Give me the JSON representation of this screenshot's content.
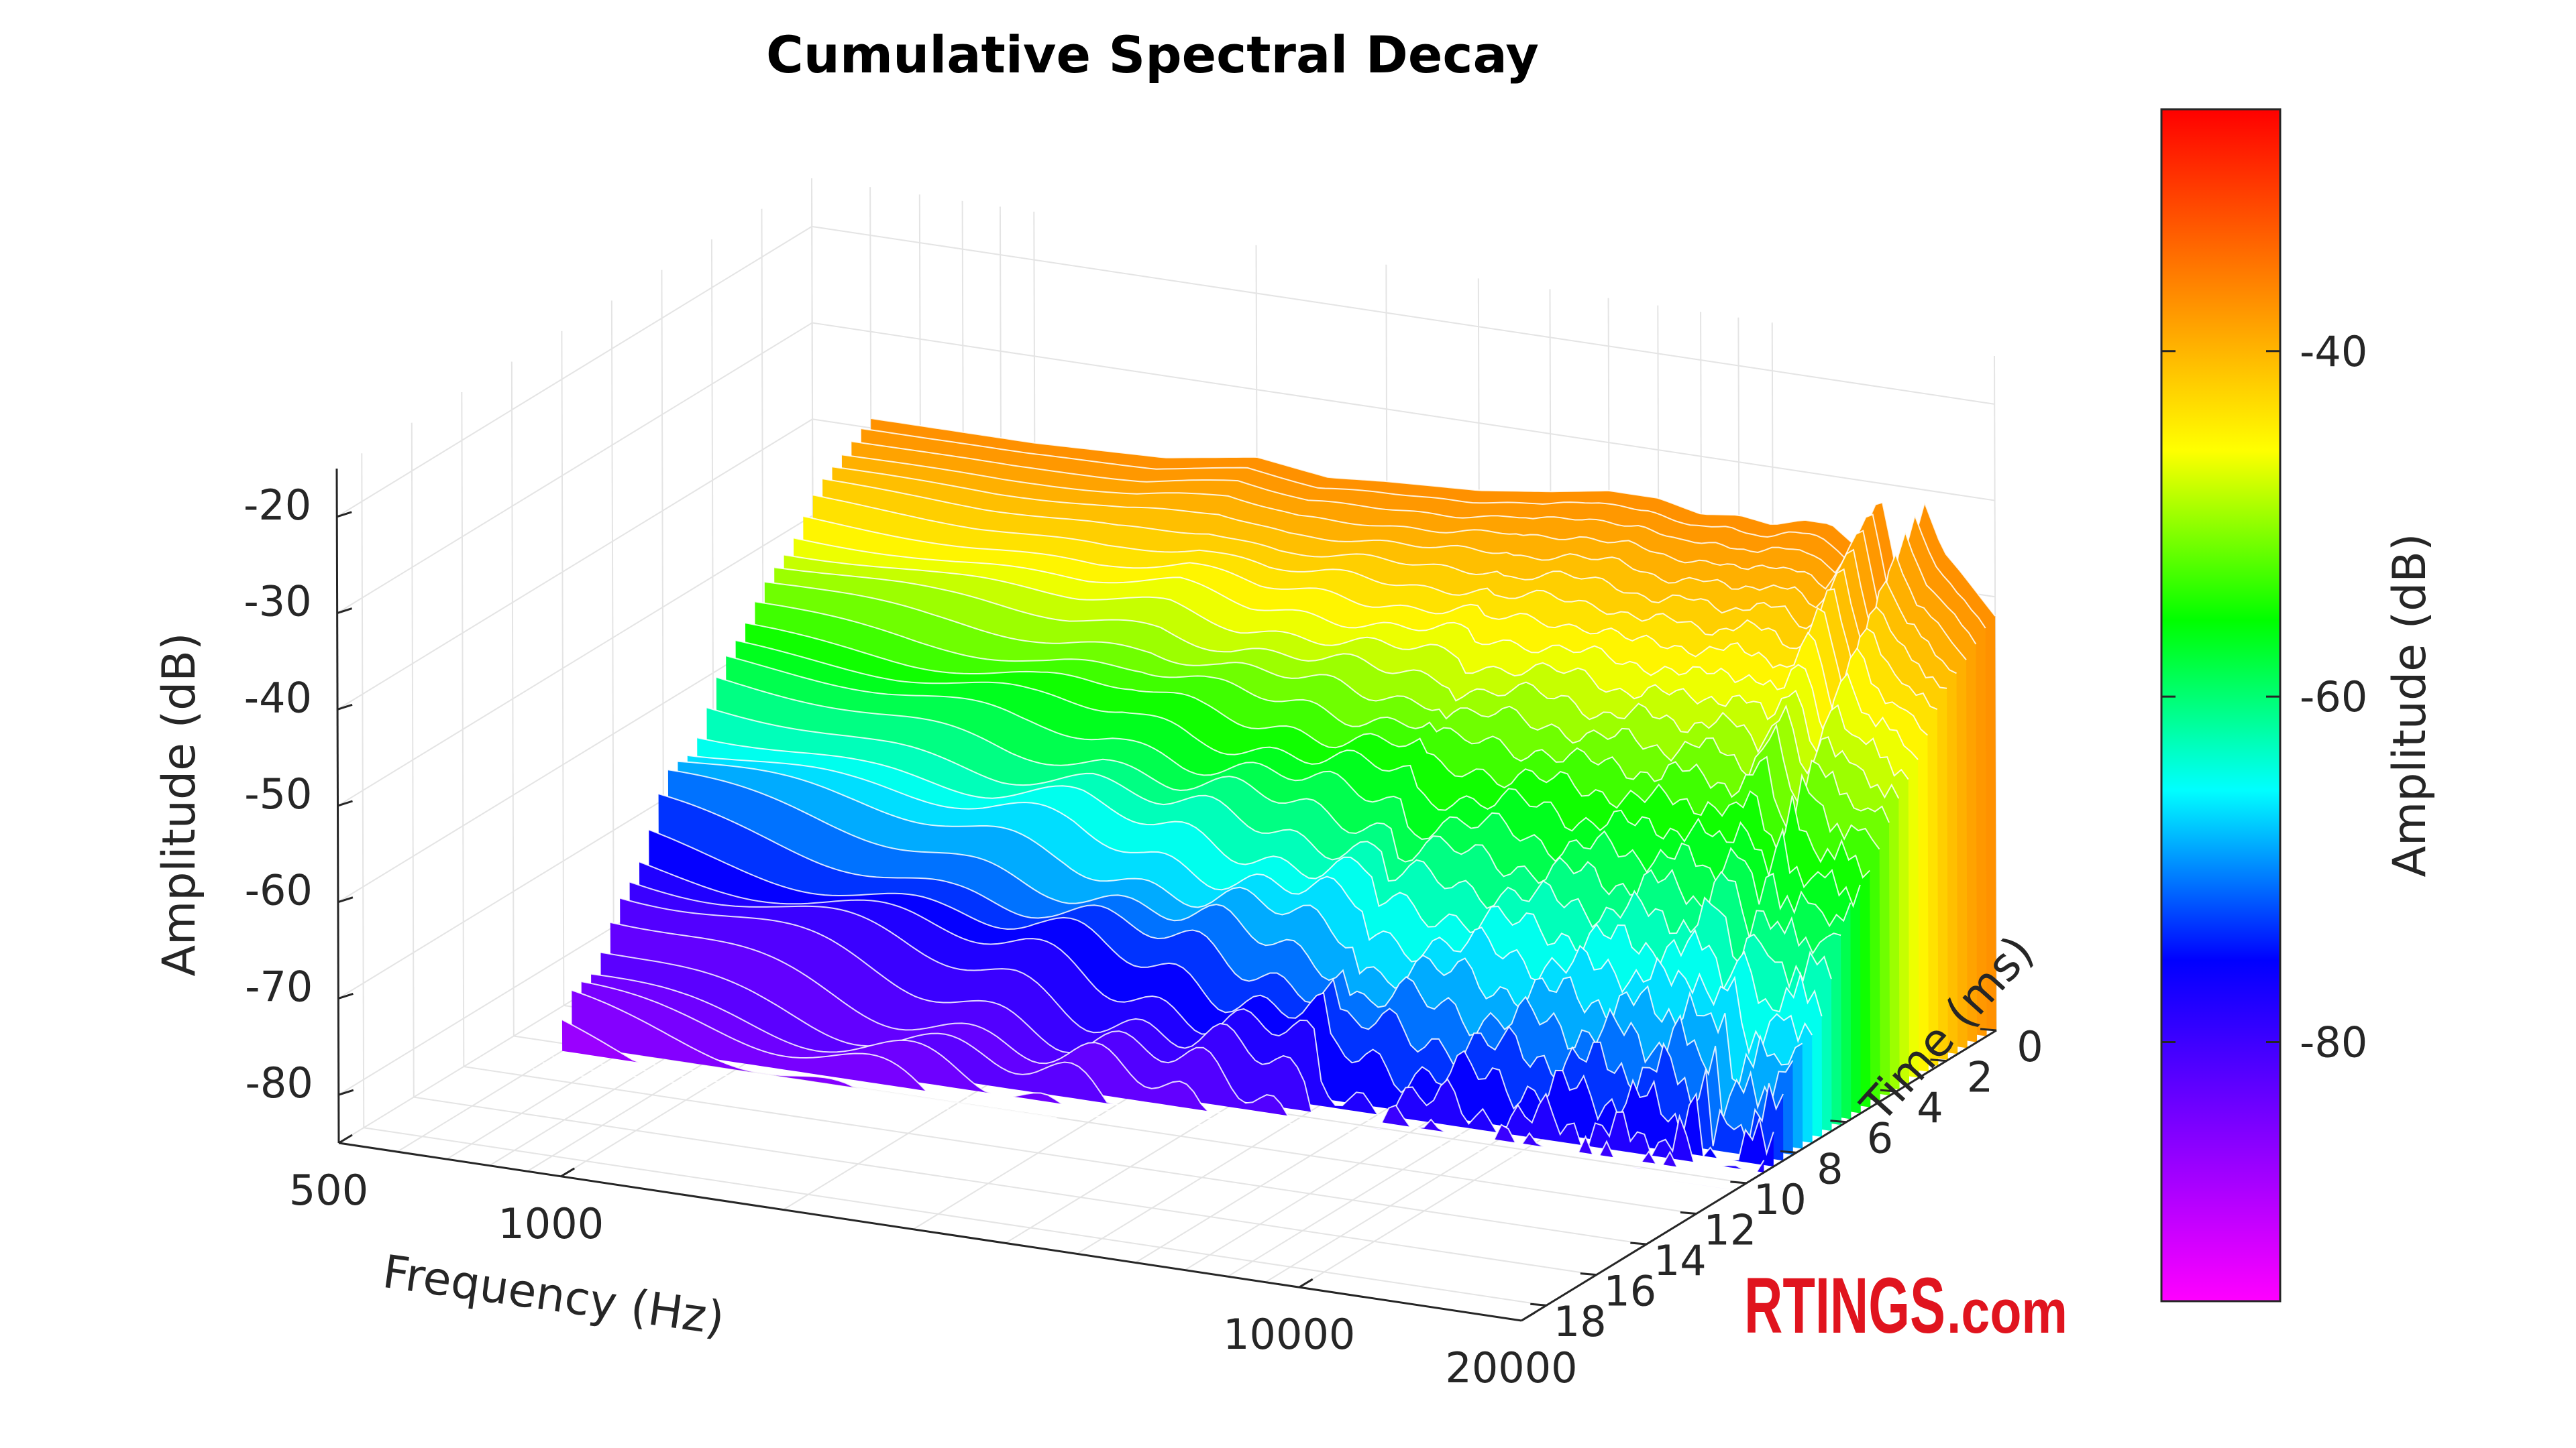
{
  "chart_data": {
    "type": "surface3d",
    "title": "Cumulative Spectral Decay",
    "xlabel": "Frequency (Hz)",
    "ylabel": "Time (ms)",
    "zlabel": "Amplitude (dB)",
    "x_scale": "log",
    "xlim": [
      500,
      20000
    ],
    "ylim": [
      0,
      19
    ],
    "zlim": [
      -85,
      -15
    ],
    "x_ticks": [
      500,
      1000,
      10000,
      20000
    ],
    "x_tick_labels": [
      "500",
      "1000",
      "10000",
      "20000"
    ],
    "y_ticks": [
      0,
      2,
      4,
      6,
      8,
      10,
      12,
      14,
      16,
      18
    ],
    "y_tick_labels": [
      "0",
      "2",
      "4",
      "6",
      "8",
      "10",
      "12",
      "14",
      "16",
      "18"
    ],
    "z_ticks": [
      -20,
      -30,
      -40,
      -50,
      -60,
      -70,
      -80
    ],
    "z_tick_labels": [
      "-20",
      "-30",
      "-40",
      "-50",
      "-60",
      "-70",
      "-80"
    ],
    "initial_response": {
      "frequency_hz": [
        600,
        800,
        1000,
        1500,
        2000,
        2500,
        3000,
        4000,
        5000,
        6000,
        7000,
        8000,
        9000,
        10000,
        11000,
        12000,
        13000,
        14000,
        15000,
        16000,
        17000,
        18000,
        20000
      ],
      "amplitude_db": [
        -39,
        -39,
        -39,
        -38.5,
        -37,
        -38,
        -37.5,
        -37,
        -36,
        -35,
        -35,
        -36,
        -35.5,
        -36,
        -35,
        -35,
        -37,
        -31,
        -42,
        -31,
        -36,
        -38,
        -42
      ]
    },
    "decay_floor_db": -88,
    "colorbar": {
      "label": "Amplitude (dB)",
      "range": [
        -95,
        -26
      ],
      "ticks": [
        -40,
        -60,
        -80
      ],
      "tick_labels": [
        "-40",
        "-60",
        "-80"
      ],
      "colormap": [
        "#ff00ff",
        "#8000ff",
        "#0000ff",
        "#00ffff",
        "#00ff00",
        "#ffff00",
        "#ff8000",
        "#ff0000"
      ]
    }
  },
  "watermark": {
    "brand": "RTINGS",
    "suffix": ".com",
    "color": "#e0141e"
  }
}
